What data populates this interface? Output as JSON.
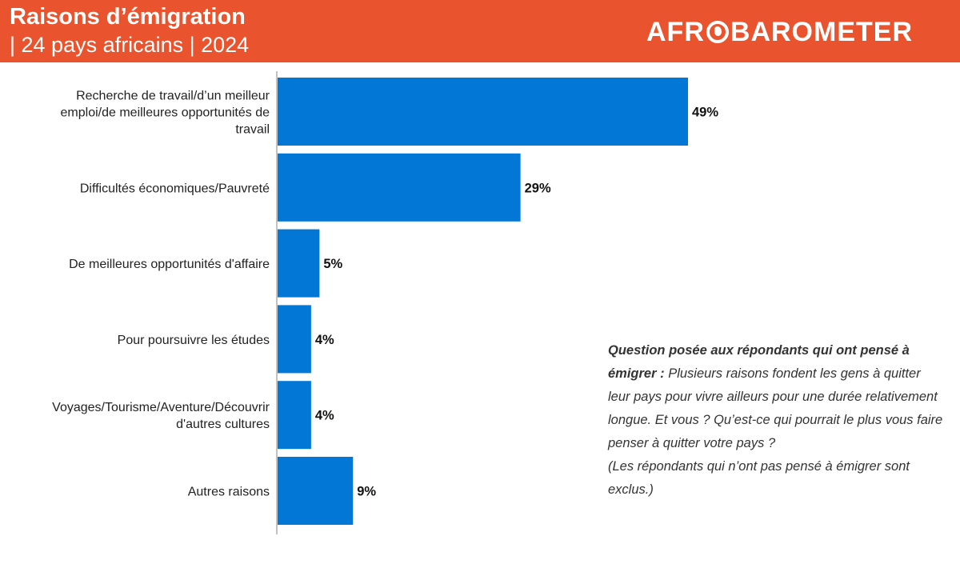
{
  "header": {
    "title": "Raisons d’émigration",
    "subtitle": "| 24 pays africains | 2024",
    "logo_left": "AFR",
    "logo_right": "BAROMETER"
  },
  "colors": {
    "header_bg": "#e9542e",
    "bar": "#0277d6",
    "text": "#333333"
  },
  "chart_data": {
    "type": "bar",
    "orientation": "horizontal",
    "title": "Raisons d’émigration",
    "categories": [
      [
        "Recherche de travail/d’un meilleur",
        "emploi/de meilleures opportunités de",
        "travail"
      ],
      [
        "Difficultés économiques/Pauvreté"
      ],
      [
        "De meilleures opportunités d'affaire"
      ],
      [
        "Pour poursuivre les études"
      ],
      [
        "Voyages/Tourisme/Aventure/Découvrir",
        "d'autres cultures"
      ],
      [
        "Autres raisons"
      ]
    ],
    "values": [
      49,
      29,
      5,
      4,
      4,
      9
    ],
    "value_labels": [
      "49%",
      "29%",
      "5%",
      "4%",
      "4%",
      "9%"
    ],
    "unit": "%",
    "xlim": [
      0,
      100
    ],
    "grid": false,
    "legend": "none"
  },
  "note": {
    "question_label": "Question posée aux répondants qui ont pensé à émigrer :",
    "question_text": " Plusieurs raisons fondent les gens à quitter leur pays pour vivre ailleurs pour une durée relativement longue. Et vous ? Qu’est-ce qui pourrait le plus vous faire penser à quitter votre pays ?",
    "exclusion": "(Les répondants qui n’ont pas pensé à émigrer sont exclus.)"
  }
}
